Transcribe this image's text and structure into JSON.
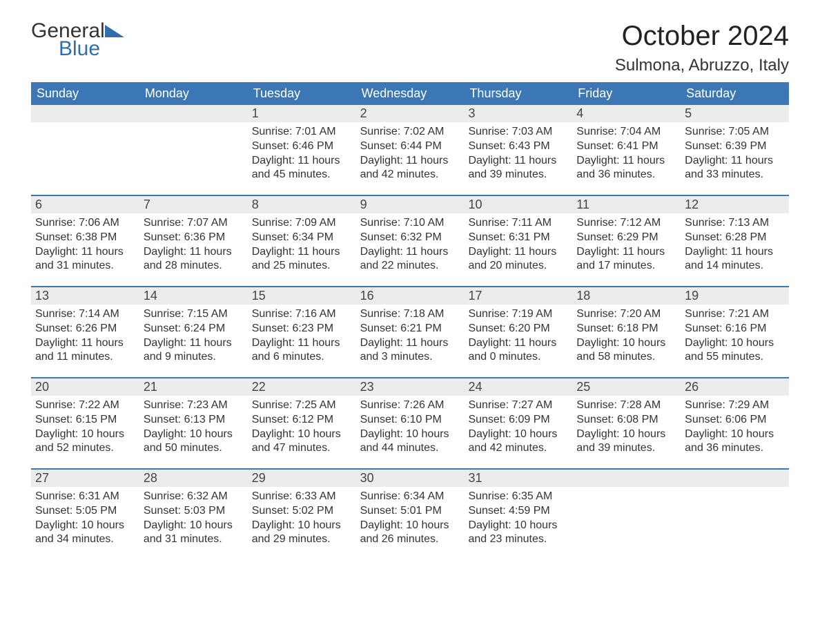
{
  "logo": {
    "line1": "General",
    "line2": "Blue"
  },
  "title": "October 2024",
  "location": "Sulmona, Abruzzo, Italy",
  "colors": {
    "header_bg": "#3b77b5",
    "header_text": "#ffffff",
    "daynum_bg": "#ececec",
    "text": "#333333",
    "logo_blue": "#2f6fb0",
    "page_bg": "#ffffff",
    "week_divider": "#3b77b5"
  },
  "fonts": {
    "title_size_pt": 30,
    "location_size_pt": 18,
    "dayheader_size_pt": 14,
    "daynum_size_pt": 14,
    "body_size_pt": 12
  },
  "day_headers": [
    "Sunday",
    "Monday",
    "Tuesday",
    "Wednesday",
    "Thursday",
    "Friday",
    "Saturday"
  ],
  "labels": {
    "sunrise": "Sunrise:",
    "sunset": "Sunset:",
    "daylight": "Daylight:"
  },
  "weeks": [
    [
      null,
      null,
      {
        "n": "1",
        "sunrise": "7:01 AM",
        "sunset": "6:46 PM",
        "daylight": "11 hours and 45 minutes."
      },
      {
        "n": "2",
        "sunrise": "7:02 AM",
        "sunset": "6:44 PM",
        "daylight": "11 hours and 42 minutes."
      },
      {
        "n": "3",
        "sunrise": "7:03 AM",
        "sunset": "6:43 PM",
        "daylight": "11 hours and 39 minutes."
      },
      {
        "n": "4",
        "sunrise": "7:04 AM",
        "sunset": "6:41 PM",
        "daylight": "11 hours and 36 minutes."
      },
      {
        "n": "5",
        "sunrise": "7:05 AM",
        "sunset": "6:39 PM",
        "daylight": "11 hours and 33 minutes."
      }
    ],
    [
      {
        "n": "6",
        "sunrise": "7:06 AM",
        "sunset": "6:38 PM",
        "daylight": "11 hours and 31 minutes."
      },
      {
        "n": "7",
        "sunrise": "7:07 AM",
        "sunset": "6:36 PM",
        "daylight": "11 hours and 28 minutes."
      },
      {
        "n": "8",
        "sunrise": "7:09 AM",
        "sunset": "6:34 PM",
        "daylight": "11 hours and 25 minutes."
      },
      {
        "n": "9",
        "sunrise": "7:10 AM",
        "sunset": "6:32 PM",
        "daylight": "11 hours and 22 minutes."
      },
      {
        "n": "10",
        "sunrise": "7:11 AM",
        "sunset": "6:31 PM",
        "daylight": "11 hours and 20 minutes."
      },
      {
        "n": "11",
        "sunrise": "7:12 AM",
        "sunset": "6:29 PM",
        "daylight": "11 hours and 17 minutes."
      },
      {
        "n": "12",
        "sunrise": "7:13 AM",
        "sunset": "6:28 PM",
        "daylight": "11 hours and 14 minutes."
      }
    ],
    [
      {
        "n": "13",
        "sunrise": "7:14 AM",
        "sunset": "6:26 PM",
        "daylight": "11 hours and 11 minutes."
      },
      {
        "n": "14",
        "sunrise": "7:15 AM",
        "sunset": "6:24 PM",
        "daylight": "11 hours and 9 minutes."
      },
      {
        "n": "15",
        "sunrise": "7:16 AM",
        "sunset": "6:23 PM",
        "daylight": "11 hours and 6 minutes."
      },
      {
        "n": "16",
        "sunrise": "7:18 AM",
        "sunset": "6:21 PM",
        "daylight": "11 hours and 3 minutes."
      },
      {
        "n": "17",
        "sunrise": "7:19 AM",
        "sunset": "6:20 PM",
        "daylight": "11 hours and 0 minutes."
      },
      {
        "n": "18",
        "sunrise": "7:20 AM",
        "sunset": "6:18 PM",
        "daylight": "10 hours and 58 minutes."
      },
      {
        "n": "19",
        "sunrise": "7:21 AM",
        "sunset": "6:16 PM",
        "daylight": "10 hours and 55 minutes."
      }
    ],
    [
      {
        "n": "20",
        "sunrise": "7:22 AM",
        "sunset": "6:15 PM",
        "daylight": "10 hours and 52 minutes."
      },
      {
        "n": "21",
        "sunrise": "7:23 AM",
        "sunset": "6:13 PM",
        "daylight": "10 hours and 50 minutes."
      },
      {
        "n": "22",
        "sunrise": "7:25 AM",
        "sunset": "6:12 PM",
        "daylight": "10 hours and 47 minutes."
      },
      {
        "n": "23",
        "sunrise": "7:26 AM",
        "sunset": "6:10 PM",
        "daylight": "10 hours and 44 minutes."
      },
      {
        "n": "24",
        "sunrise": "7:27 AM",
        "sunset": "6:09 PM",
        "daylight": "10 hours and 42 minutes."
      },
      {
        "n": "25",
        "sunrise": "7:28 AM",
        "sunset": "6:08 PM",
        "daylight": "10 hours and 39 minutes."
      },
      {
        "n": "26",
        "sunrise": "7:29 AM",
        "sunset": "6:06 PM",
        "daylight": "10 hours and 36 minutes."
      }
    ],
    [
      {
        "n": "27",
        "sunrise": "6:31 AM",
        "sunset": "5:05 PM",
        "daylight": "10 hours and 34 minutes."
      },
      {
        "n": "28",
        "sunrise": "6:32 AM",
        "sunset": "5:03 PM",
        "daylight": "10 hours and 31 minutes."
      },
      {
        "n": "29",
        "sunrise": "6:33 AM",
        "sunset": "5:02 PM",
        "daylight": "10 hours and 29 minutes."
      },
      {
        "n": "30",
        "sunrise": "6:34 AM",
        "sunset": "5:01 PM",
        "daylight": "10 hours and 26 minutes."
      },
      {
        "n": "31",
        "sunrise": "6:35 AM",
        "sunset": "4:59 PM",
        "daylight": "10 hours and 23 minutes."
      },
      null,
      null
    ]
  ]
}
